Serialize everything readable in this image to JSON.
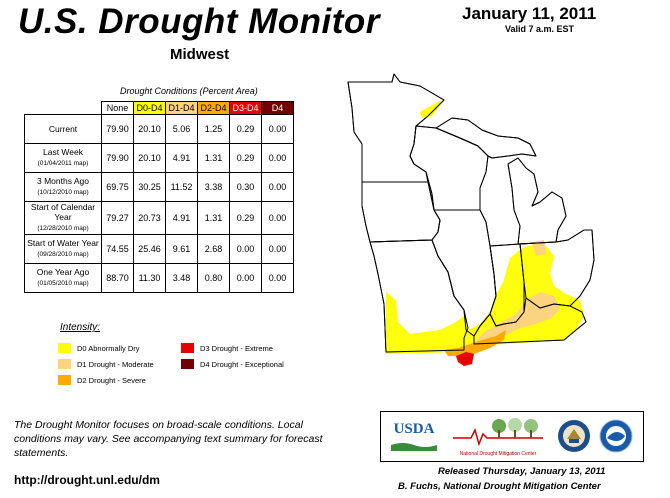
{
  "header": {
    "title": "U.S. Drought Monitor",
    "region": "Midwest",
    "date": "January 11, 2011",
    "valid": "Valid 7 a.m. EST"
  },
  "table": {
    "caption": "Drought Conditions (Percent Area)",
    "columns": [
      "None",
      "D0-D4",
      "D1-D4",
      "D2-D4",
      "D3-D4",
      "D4"
    ],
    "rows": [
      {
        "label": "Current",
        "sub": "",
        "values": [
          "79.90",
          "20.10",
          "5.06",
          "1.25",
          "0.29",
          "0.00"
        ]
      },
      {
        "label": "Last Week",
        "sub": "(01/04/2011 map)",
        "values": [
          "79.90",
          "20.10",
          "4.91",
          "1.31",
          "0.29",
          "0.00"
        ]
      },
      {
        "label": "3 Months Ago",
        "sub": "(10/12/2010 map)",
        "values": [
          "69.75",
          "30.25",
          "11.52",
          "3.38",
          "0.30",
          "0.00"
        ]
      },
      {
        "label": "Start of Calendar Year",
        "sub": "(12/28/2010 map)",
        "values": [
          "79.27",
          "20.73",
          "4.91",
          "1.31",
          "0.29",
          "0.00"
        ]
      },
      {
        "label": "Start of Water Year",
        "sub": "(09/28/2010 map)",
        "values": [
          "74.55",
          "25.46",
          "9.61",
          "2.68",
          "0.00",
          "0.00"
        ]
      },
      {
        "label": "One Year Ago",
        "sub": "(01/05/2010 map)",
        "values": [
          "88.70",
          "11.30",
          "3.48",
          "0.80",
          "0.00",
          "0.00"
        ]
      }
    ]
  },
  "legend": {
    "title": "Intensity:",
    "items": [
      {
        "label": "D0 Abnormally Dry",
        "color": "#ffff00"
      },
      {
        "label": "D1 Drought - Moderate",
        "color": "#fcd37f"
      },
      {
        "label": "D2 Drought - Severe",
        "color": "#ffaa00"
      },
      {
        "label": "D3 Drought - Extreme",
        "color": "#e60000"
      },
      {
        "label": "D4 Drought - Exceptional",
        "color": "#730000"
      }
    ]
  },
  "footer": {
    "note": "The Drought Monitor focuses on broad-scale conditions. Local conditions may vary. See accompanying text summary for forecast statements.",
    "url": "http://drought.unl.edu/dm",
    "released": "Released Thursday, January 13, 2011",
    "author": "B. Fuchs, National Drought Mitigation Center"
  },
  "logos": {
    "usda": "USDA",
    "ndmc": "National Drought Mitigation Center"
  }
}
